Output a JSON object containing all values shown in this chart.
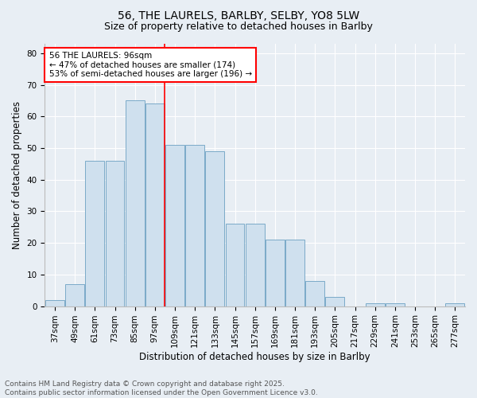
{
  "title_line1": "56, THE LAURELS, BARLBY, SELBY, YO8 5LW",
  "title_line2": "Size of property relative to detached houses in Barlby",
  "xlabel": "Distribution of detached houses by size in Barlby",
  "ylabel": "Number of detached properties",
  "categories": [
    "37sqm",
    "49sqm",
    "61sqm",
    "73sqm",
    "85sqm",
    "97sqm",
    "109sqm",
    "121sqm",
    "133sqm",
    "145sqm",
    "157sqm",
    "169sqm",
    "181sqm",
    "193sqm",
    "205sqm",
    "217sqm",
    "229sqm",
    "241sqm",
    "253sqm",
    "265sqm",
    "277sqm"
  ],
  "bar_values": [
    2,
    7,
    46,
    46,
    65,
    64,
    51,
    51,
    49,
    26,
    26,
    21,
    21,
    8,
    3,
    0,
    1,
    1,
    0,
    0,
    1
  ],
  "bar_color": "#cfe0ee",
  "bar_edge_color": "#7aaac8",
  "vline_color": "red",
  "vline_x_index": 5,
  "annotation_text": "56 THE LAURELS: 96sqm\n← 47% of detached houses are smaller (174)\n53% of semi-detached houses are larger (196) →",
  "annotation_box_color": "white",
  "annotation_box_edge_color": "red",
  "ylim_max": 83,
  "yticks": [
    0,
    10,
    20,
    30,
    40,
    50,
    60,
    70,
    80
  ],
  "background_color": "#e8eef4",
  "plot_background": "#e8eef4",
  "grid_color": "white",
  "footer_text": "Contains HM Land Registry data © Crown copyright and database right 2025.\nContains public sector information licensed under the Open Government Licence v3.0.",
  "title_fontsize": 10,
  "subtitle_fontsize": 9,
  "axis_label_fontsize": 8.5,
  "tick_fontsize": 7.5,
  "annotation_fontsize": 7.5,
  "footer_fontsize": 6.5
}
